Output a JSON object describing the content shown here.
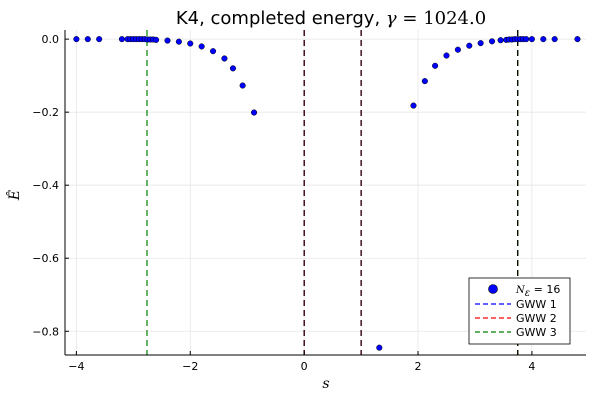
{
  "chart_data": {
    "type": "scatter",
    "title": {
      "prefix": "K4, completed energy, ",
      "gamma_symbol": "γ",
      "equals": " = ",
      "gamma_value": "1024.0"
    },
    "xlabel": "s",
    "ylabel": "Ê",
    "xlim": [
      -4.2,
      4.95
    ],
    "ylim": [
      -0.865,
      0.025
    ],
    "xticks": [
      -4,
      -2,
      0,
      2,
      4
    ],
    "yticks": [
      0.0,
      -0.2,
      -0.4,
      -0.6,
      -0.8
    ],
    "xtick_labels": [
      "−4",
      "−2",
      "0",
      "2",
      "4"
    ],
    "ytick_labels": [
      "0.0",
      "−0.2",
      "−0.4",
      "−0.6",
      "−0.8"
    ],
    "grid": true,
    "legend_position": "bottom-right",
    "series": [
      {
        "name": "N_ε = 16",
        "legend_label": {
          "symbol": "N",
          "subscript": "ε",
          "suffix": " = 16"
        },
        "kind": "scatter",
        "color": "#0000ff",
        "points": [
          [
            -4.0,
            0.0
          ],
          [
            -3.8,
            0.0
          ],
          [
            -3.6,
            0.0
          ],
          [
            -3.2,
            0.0
          ],
          [
            -3.1,
            0.0
          ],
          [
            -3.05,
            0.0
          ],
          [
            -3.0,
            0.0
          ],
          [
            -2.95,
            0.0
          ],
          [
            -2.9,
            0.0
          ],
          [
            -2.85,
            0.0
          ],
          [
            -2.8,
            0.0
          ],
          [
            -2.75,
            -0.001
          ],
          [
            -2.7,
            -0.001
          ],
          [
            -2.65,
            -0.001
          ],
          [
            -2.6,
            -0.002
          ],
          [
            -2.4,
            -0.004
          ],
          [
            -2.2,
            -0.007
          ],
          [
            -2.0,
            -0.012
          ],
          [
            -1.8,
            -0.02
          ],
          [
            -1.6,
            -0.033
          ],
          [
            -1.4,
            -0.053
          ],
          [
            -1.25,
            -0.08
          ],
          [
            -1.08,
            -0.127
          ],
          [
            -0.88,
            -0.201
          ],
          [
            1.32,
            -0.845
          ],
          [
            1.92,
            -0.182
          ],
          [
            2.12,
            -0.115
          ],
          [
            2.3,
            -0.073
          ],
          [
            2.5,
            -0.045
          ],
          [
            2.7,
            -0.029
          ],
          [
            2.9,
            -0.018
          ],
          [
            3.1,
            -0.011
          ],
          [
            3.3,
            -0.006
          ],
          [
            3.45,
            -0.003
          ],
          [
            3.55,
            -0.002
          ],
          [
            3.6,
            -0.001
          ],
          [
            3.65,
            -0.001
          ],
          [
            3.7,
            0.0
          ],
          [
            3.75,
            0.0
          ],
          [
            3.8,
            0.0
          ],
          [
            3.85,
            0.0
          ],
          [
            3.9,
            0.0
          ],
          [
            4.0,
            0.0
          ],
          [
            4.2,
            0.0
          ],
          [
            4.4,
            0.0
          ],
          [
            4.8,
            0.0
          ]
        ]
      },
      {
        "name": "GWW 1",
        "kind": "vline",
        "color": "#0000ff",
        "x": [
          0.0,
          1.0,
          3.75
        ]
      },
      {
        "name": "GWW 2",
        "kind": "vline",
        "color": "#ff0000",
        "x": [
          0.0,
          1.0,
          3.75
        ]
      },
      {
        "name": "GWW 3",
        "kind": "vline",
        "color": "#008000",
        "x": [
          -2.76,
          3.75
        ]
      }
    ],
    "annotations": [
      {
        "kind": "vline",
        "color": "#000000",
        "x": [
          0.0,
          1.0,
          3.75
        ]
      }
    ]
  }
}
